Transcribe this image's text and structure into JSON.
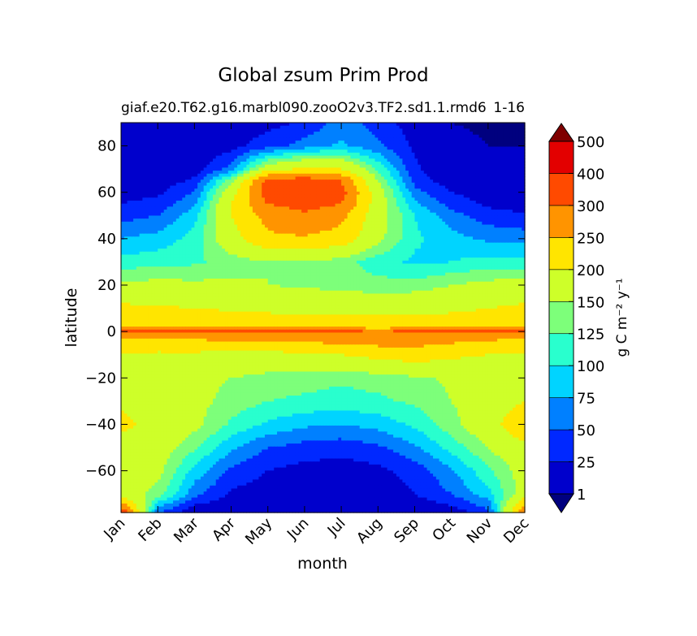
{
  "chart_data": {
    "type": "heatmap",
    "title": "Global zsum Prim Prod",
    "subtitle_left": "giaf.e20.T62.g16.marbl090.zooO2v3.TF2.sd1.1.rmd6",
    "subtitle_right": "1-16",
    "xlabel": "month",
    "ylabel": "latitude",
    "x_categories": [
      "Jan",
      "Feb",
      "Mar",
      "Apr",
      "May",
      "Jun",
      "Jul",
      "Aug",
      "Sep",
      "Oct",
      "Nov",
      "Dec"
    ],
    "ylim": [
      -78,
      90
    ],
    "y_ticks": [
      80,
      60,
      40,
      20,
      0,
      -20,
      -40,
      -60
    ],
    "y_tick_labels": [
      "80",
      "60",
      "40",
      "20",
      "0",
      "−20",
      "−40",
      "−60"
    ],
    "colorbar": {
      "label": "g C m⁻² y⁻¹",
      "levels": [
        1,
        25,
        50,
        75,
        100,
        125,
        150,
        200,
        250,
        300,
        400,
        500
      ],
      "level_labels": [
        "1",
        "25",
        "50",
        "75",
        "100",
        "125",
        "150",
        "200",
        "250",
        "300",
        "400",
        "500"
      ],
      "colors": [
        "#00007f",
        "#0000cc",
        "#0028ff",
        "#0080ff",
        "#00d4ff",
        "#29ffce",
        "#7dff7a",
        "#ceff29",
        "#ffe500",
        "#ff9400",
        "#ff4a00",
        "#e30000",
        "#7f0000"
      ],
      "extend": "both"
    },
    "latitudes": [
      -78,
      -70,
      -60,
      -50,
      -40,
      -30,
      -20,
      -10,
      -2,
      0,
      2,
      10,
      20,
      30,
      40,
      50,
      55,
      60,
      65,
      70,
      80,
      90
    ],
    "values": [
      [
        350,
        50,
        1,
        1,
        1,
        1,
        1,
        1,
        1,
        10,
        40,
        300
      ],
      [
        170,
        140,
        60,
        20,
        10,
        5,
        5,
        10,
        25,
        50,
        90,
        170
      ],
      [
        170,
        160,
        90,
        45,
        25,
        15,
        12,
        18,
        35,
        70,
        120,
        165
      ],
      [
        175,
        170,
        130,
        80,
        50,
        40,
        35,
        45,
        70,
        110,
        150,
        190
      ],
      [
        215,
        180,
        160,
        120,
        95,
        80,
        75,
        85,
        105,
        140,
        180,
        240
      ],
      [
        190,
        180,
        160,
        140,
        125,
        120,
        115,
        120,
        130,
        150,
        170,
        200
      ],
      [
        170,
        165,
        160,
        150,
        140,
        135,
        130,
        135,
        145,
        155,
        160,
        165
      ],
      [
        195,
        190,
        190,
        185,
        185,
        190,
        200,
        215,
        225,
        210,
        200,
        195
      ],
      [
        260,
        260,
        265,
        270,
        275,
        280,
        285,
        290,
        285,
        275,
        265,
        260
      ],
      [
        320,
        320,
        320,
        315,
        315,
        310,
        310,
        305,
        310,
        320,
        320,
        320
      ],
      [
        230,
        230,
        230,
        230,
        230,
        230,
        230,
        230,
        230,
        230,
        230,
        230
      ],
      [
        210,
        205,
        200,
        195,
        190,
        185,
        180,
        180,
        185,
        190,
        200,
        210
      ],
      [
        160,
        160,
        158,
        155,
        150,
        145,
        140,
        135,
        135,
        150,
        160,
        165
      ],
      [
        110,
        115,
        120,
        135,
        150,
        150,
        135,
        110,
        95,
        100,
        110,
        110
      ],
      [
        75,
        85,
        110,
        180,
        240,
        245,
        230,
        160,
        105,
        85,
        70,
        65
      ],
      [
        40,
        50,
        90,
        200,
        270,
        290,
        265,
        170,
        100,
        60,
        35,
        28
      ],
      [
        25,
        35,
        70,
        200,
        300,
        320,
        300,
        175,
        80,
        40,
        20,
        15
      ],
      [
        12,
        20,
        50,
        180,
        330,
        340,
        320,
        170,
        60,
        25,
        10,
        8
      ],
      [
        5,
        10,
        30,
        140,
        320,
        330,
        300,
        150,
        40,
        10,
        2,
        1
      ],
      [
        2,
        5,
        12,
        60,
        180,
        210,
        200,
        120,
        30,
        5,
        1,
        1
      ],
      [
        1,
        1,
        3,
        15,
        40,
        60,
        80,
        55,
        20,
        2,
        1,
        1
      ],
      [
        1,
        1,
        1,
        5,
        15,
        30,
        60,
        40,
        10,
        1,
        0.5,
        0.5
      ]
    ]
  }
}
